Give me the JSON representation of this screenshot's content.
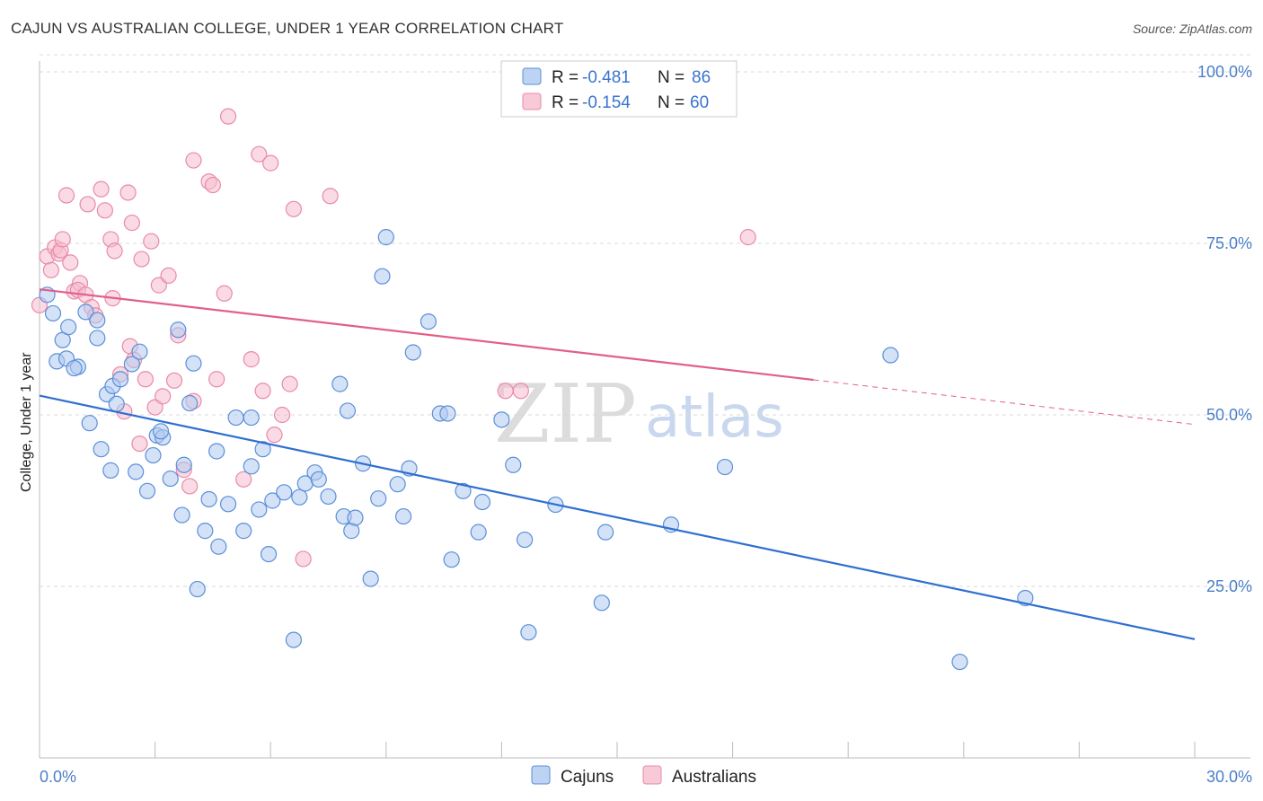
{
  "header": {
    "title": "CAJUN VS AUSTRALIAN COLLEGE, UNDER 1 YEAR CORRELATION CHART",
    "source": "Source: ZipAtlas.com"
  },
  "watermark": {
    "zip": "ZIP",
    "atlas": "atlas"
  },
  "legend": {
    "cajuns": {
      "r_label": "R = ",
      "r_value": "-0.481",
      "n_label": "N = ",
      "n_value": "86"
    },
    "australians": {
      "r_label": "R = ",
      "r_value": "-0.154",
      "n_label": "N = ",
      "n_value": "60"
    }
  },
  "chart_data": {
    "type": "scatter",
    "title": "CAJUN VS AUSTRALIAN COLLEGE, UNDER 1 YEAR CORRELATION CHART",
    "xlabel": "",
    "ylabel": "College, Under 1 year",
    "xlim": [
      0,
      30
    ],
    "ylim": [
      0,
      105
    ],
    "x_tick_labels": [
      "0.0%",
      "30.0%"
    ],
    "y_ticks": [
      25,
      50,
      75,
      100
    ],
    "y_tick_labels": [
      "25.0%",
      "50.0%",
      "75.0%",
      "100.0%"
    ],
    "colors": {
      "cajuns": "#5b8fd8",
      "australians": "#e98aa8",
      "cajuns_line": "#2f6fd0",
      "australians_line": "#e0608a"
    },
    "series": [
      {
        "name": "Cajuns",
        "trend": {
          "x0": 0,
          "y0": 52.8,
          "x1": 30,
          "y1": 17.3,
          "solid_to": 30
        },
        "points": [
          [
            0.2,
            67.5
          ],
          [
            0.35,
            64.8
          ],
          [
            0.45,
            57.8
          ],
          [
            0.6,
            60.9
          ],
          [
            0.75,
            62.8
          ],
          [
            0.7,
            58.2
          ],
          [
            1.0,
            57.0
          ],
          [
            0.9,
            56.8
          ],
          [
            1.2,
            65.0
          ],
          [
            1.5,
            63.8
          ],
          [
            1.5,
            61.2
          ],
          [
            1.3,
            48.8
          ],
          [
            1.6,
            45.0
          ],
          [
            1.75,
            53.0
          ],
          [
            1.9,
            54.2
          ],
          [
            2.0,
            51.6
          ],
          [
            2.1,
            55.2
          ],
          [
            2.4,
            57.4
          ],
          [
            2.6,
            59.2
          ],
          [
            2.5,
            41.7
          ],
          [
            2.8,
            38.9
          ],
          [
            2.95,
            44.1
          ],
          [
            3.05,
            47.0
          ],
          [
            3.2,
            46.7
          ],
          [
            3.15,
            47.6
          ],
          [
            3.4,
            40.7
          ],
          [
            3.6,
            62.4
          ],
          [
            3.7,
            35.4
          ],
          [
            3.75,
            42.7
          ],
          [
            3.9,
            51.7
          ],
          [
            4.0,
            57.5
          ],
          [
            4.1,
            24.6
          ],
          [
            4.3,
            33.1
          ],
          [
            4.4,
            37.7
          ],
          [
            4.6,
            44.7
          ],
          [
            4.65,
            30.8
          ],
          [
            4.9,
            37.0
          ],
          [
            5.1,
            49.6
          ],
          [
            5.3,
            33.1
          ],
          [
            5.5,
            49.6
          ],
          [
            5.5,
            42.5
          ],
          [
            5.7,
            36.2
          ],
          [
            5.8,
            45.0
          ],
          [
            5.95,
            29.7
          ],
          [
            6.05,
            37.5
          ],
          [
            6.35,
            38.7
          ],
          [
            6.6,
            17.2
          ],
          [
            6.75,
            38.0
          ],
          [
            6.9,
            40.0
          ],
          [
            7.15,
            41.6
          ],
          [
            7.25,
            40.6
          ],
          [
            7.5,
            38.1
          ],
          [
            7.8,
            54.5
          ],
          [
            7.9,
            35.2
          ],
          [
            8.0,
            50.6
          ],
          [
            8.1,
            33.1
          ],
          [
            8.2,
            35.0
          ],
          [
            8.4,
            42.9
          ],
          [
            8.6,
            26.1
          ],
          [
            8.8,
            37.8
          ],
          [
            9.0,
            75.9
          ],
          [
            9.3,
            39.9
          ],
          [
            9.45,
            35.2
          ],
          [
            9.6,
            42.2
          ],
          [
            9.7,
            59.1
          ],
          [
            10.1,
            63.6
          ],
          [
            10.4,
            50.2
          ],
          [
            10.6,
            50.2
          ],
          [
            10.7,
            28.9
          ],
          [
            11.0,
            38.9
          ],
          [
            11.4,
            32.9
          ],
          [
            11.5,
            37.3
          ],
          [
            12.0,
            49.3
          ],
          [
            12.3,
            42.7
          ],
          [
            12.6,
            31.8
          ],
          [
            12.7,
            18.3
          ],
          [
            13.4,
            36.9
          ],
          [
            14.7,
            32.9
          ],
          [
            14.6,
            22.6
          ],
          [
            16.4,
            34.0
          ],
          [
            17.8,
            42.4
          ],
          [
            22.1,
            58.7
          ],
          [
            23.9,
            14.0
          ],
          [
            25.6,
            23.3
          ],
          [
            8.9,
            70.2
          ],
          [
            1.85,
            41.9
          ]
        ]
      },
      {
        "name": "Australians",
        "trend": {
          "x0": 0,
          "y0": 68.3,
          "x1": 30,
          "y1": 48.6,
          "solid_to": 20.1
        },
        "points": [
          [
            0.0,
            66.0
          ],
          [
            0.2,
            73.1
          ],
          [
            0.3,
            71.1
          ],
          [
            0.4,
            74.4
          ],
          [
            0.5,
            73.5
          ],
          [
            0.55,
            74.0
          ],
          [
            0.6,
            75.6
          ],
          [
            0.7,
            82.0
          ],
          [
            0.8,
            72.2
          ],
          [
            0.9,
            68.0
          ],
          [
            1.05,
            69.2
          ],
          [
            1.0,
            68.2
          ],
          [
            1.2,
            67.5
          ],
          [
            1.25,
            80.7
          ],
          [
            1.35,
            65.7
          ],
          [
            1.45,
            64.5
          ],
          [
            1.6,
            82.9
          ],
          [
            1.7,
            79.8
          ],
          [
            1.85,
            75.6
          ],
          [
            1.95,
            73.9
          ],
          [
            1.9,
            67.0
          ],
          [
            2.1,
            55.9
          ],
          [
            2.2,
            50.5
          ],
          [
            2.35,
            60.0
          ],
          [
            2.45,
            58.0
          ],
          [
            2.4,
            78.0
          ],
          [
            2.6,
            45.8
          ],
          [
            2.65,
            72.7
          ],
          [
            2.75,
            55.2
          ],
          [
            2.9,
            75.3
          ],
          [
            3.0,
            51.1
          ],
          [
            3.1,
            68.9
          ],
          [
            3.2,
            52.7
          ],
          [
            3.35,
            70.3
          ],
          [
            3.5,
            55.0
          ],
          [
            3.6,
            61.6
          ],
          [
            3.75,
            42.0
          ],
          [
            3.9,
            39.6
          ],
          [
            4.0,
            52.0
          ],
          [
            4.0,
            87.1
          ],
          [
            4.4,
            84.0
          ],
          [
            4.5,
            83.5
          ],
          [
            4.6,
            55.2
          ],
          [
            4.8,
            67.7
          ],
          [
            4.9,
            93.5
          ],
          [
            5.3,
            40.6
          ],
          [
            5.5,
            58.1
          ],
          [
            5.7,
            88.0
          ],
          [
            5.8,
            53.5
          ],
          [
            6.0,
            86.7
          ],
          [
            6.1,
            47.1
          ],
          [
            6.3,
            50.0
          ],
          [
            6.5,
            54.5
          ],
          [
            6.6,
            80.0
          ],
          [
            6.85,
            29.0
          ],
          [
            7.55,
            81.9
          ],
          [
            12.1,
            53.5
          ],
          [
            12.5,
            53.5
          ],
          [
            18.4,
            75.9
          ],
          [
            2.3,
            82.4
          ]
        ]
      }
    ]
  },
  "bottom_legend": {
    "cajuns": "Cajuns",
    "australians": "Australians"
  }
}
